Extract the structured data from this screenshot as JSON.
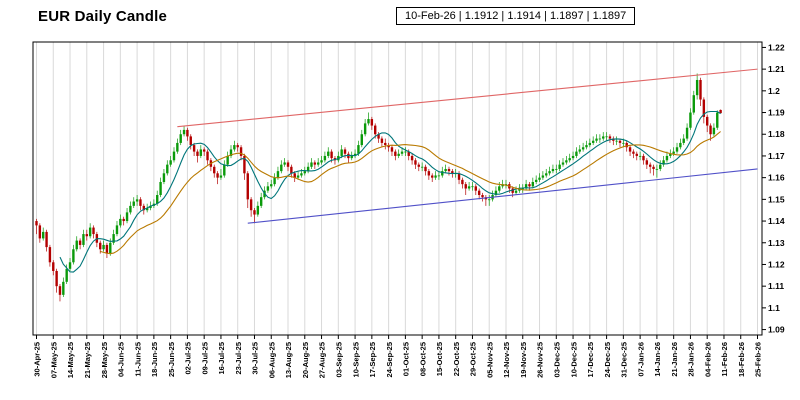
{
  "chart_data": {
    "type": "candlestick",
    "title": "EUR Daily Candle",
    "symbol": "EUR",
    "quote": {
      "date": "10-Feb-26",
      "open": "1.1912",
      "high": "1.1914",
      "low": "1.1897",
      "close": "1.1897"
    },
    "info_text": "10-Feb-26 | 1.1912 | 1.1914 | 1.1897 | 1.1897",
    "ylim": [
      1.0875,
      1.2225
    ],
    "y_ticks": [
      "1.22",
      "1.21",
      "1.2",
      "1.19",
      "1.18",
      "1.17",
      "1.16",
      "1.15",
      "1.14",
      "1.13",
      "1.12",
      "1.11",
      "1.1",
      "1.09"
    ],
    "days_per_label": 5,
    "x_labels": [
      "30-Apr-25",
      "07-May-25",
      "14-May-25",
      "21-May-25",
      "28-May-25",
      "04-Jun-25",
      "11-Jun-25",
      "18-Jun-25",
      "25-Jun-25",
      "02-Jul-25",
      "09-Jul-25",
      "16-Jul-25",
      "23-Jul-25",
      "30-Jul-25",
      "06-Aug-25",
      "13-Aug-25",
      "20-Aug-25",
      "27-Aug-25",
      "03-Sep-25",
      "10-Sep-25",
      "17-Sep-25",
      "24-Sep-25",
      "01-Oct-25",
      "08-Oct-25",
      "15-Oct-25",
      "22-Oct-25",
      "29-Oct-25",
      "05-Nov-25",
      "12-Nov-25",
      "19-Nov-25",
      "26-Nov-25",
      "03-Dec-25",
      "10-Dec-25",
      "17-Dec-25",
      "24-Dec-25",
      "31-Dec-25",
      "07-Jan-26",
      "14-Jan-26",
      "21-Jan-26",
      "28-Jan-26",
      "04-Feb-26",
      "11-Feb-26",
      "18-Feb-26",
      "25-Feb-26"
    ],
    "candles": [
      [
        1.14,
        1.141,
        1.134,
        1.138
      ],
      [
        1.138,
        1.139,
        1.13,
        1.132
      ],
      [
        1.132,
        1.137,
        1.131,
        1.135
      ],
      [
        1.135,
        1.136,
        1.126,
        1.128
      ],
      [
        1.128,
        1.129,
        1.119,
        1.121
      ],
      [
        1.121,
        1.122,
        1.115,
        1.117
      ],
      [
        1.117,
        1.118,
        1.107,
        1.11
      ],
      [
        1.11,
        1.111,
        1.103,
        1.106
      ],
      [
        1.106,
        1.114,
        1.105,
        1.112
      ],
      [
        1.112,
        1.12,
        1.111,
        1.118
      ],
      [
        1.118,
        1.123,
        1.117,
        1.121
      ],
      [
        1.121,
        1.129,
        1.12,
        1.127
      ],
      [
        1.127,
        1.133,
        1.126,
        1.131
      ],
      [
        1.131,
        1.132,
        1.127,
        1.129
      ],
      [
        1.129,
        1.136,
        1.128,
        1.134
      ],
      [
        1.134,
        1.136,
        1.131,
        1.133
      ],
      [
        1.133,
        1.139,
        1.132,
        1.137
      ],
      [
        1.137,
        1.138,
        1.132,
        1.134
      ],
      [
        1.134,
        1.135,
        1.128,
        1.13
      ],
      [
        1.13,
        1.131,
        1.125,
        1.127
      ],
      [
        1.127,
        1.131,
        1.126,
        1.129
      ],
      [
        1.129,
        1.13,
        1.123,
        1.125
      ],
      [
        1.125,
        1.132,
        1.124,
        1.13
      ],
      [
        1.13,
        1.136,
        1.129,
        1.134
      ],
      [
        1.134,
        1.14,
        1.133,
        1.138
      ],
      [
        1.138,
        1.143,
        1.137,
        1.141
      ],
      [
        1.141,
        1.142,
        1.138,
        1.14
      ],
      [
        1.14,
        1.146,
        1.139,
        1.144
      ],
      [
        1.144,
        1.149,
        1.143,
        1.147
      ],
      [
        1.147,
        1.151,
        1.146,
        1.149
      ],
      [
        1.149,
        1.152,
        1.147,
        1.15
      ],
      [
        1.15,
        1.151,
        1.145,
        1.147
      ],
      [
        1.147,
        1.148,
        1.143,
        1.145
      ],
      [
        1.145,
        1.148,
        1.144,
        1.146
      ],
      [
        1.146,
        1.149,
        1.145,
        1.147
      ],
      [
        1.147,
        1.15,
        1.146,
        1.148
      ],
      [
        1.148,
        1.154,
        1.147,
        1.152
      ],
      [
        1.152,
        1.16,
        1.151,
        1.158
      ],
      [
        1.158,
        1.164,
        1.157,
        1.162
      ],
      [
        1.162,
        1.168,
        1.161,
        1.166
      ],
      [
        1.166,
        1.17,
        1.165,
        1.168
      ],
      [
        1.168,
        1.174,
        1.167,
        1.172
      ],
      [
        1.172,
        1.178,
        1.171,
        1.176
      ],
      [
        1.176,
        1.182,
        1.175,
        1.18
      ],
      [
        1.18,
        1.184,
        1.179,
        1.182
      ],
      [
        1.182,
        1.183,
        1.177,
        1.179
      ],
      [
        1.179,
        1.18,
        1.173,
        1.175
      ],
      [
        1.175,
        1.176,
        1.17,
        1.172
      ],
      [
        1.172,
        1.173,
        1.167,
        1.17
      ],
      [
        1.17,
        1.175,
        1.169,
        1.173
      ],
      [
        1.173,
        1.174,
        1.17,
        1.172
      ],
      [
        1.172,
        1.173,
        1.166,
        1.168
      ],
      [
        1.168,
        1.169,
        1.163,
        1.165
      ],
      [
        1.165,
        1.166,
        1.16,
        1.162
      ],
      [
        1.162,
        1.163,
        1.157,
        1.16
      ],
      [
        1.16,
        1.164,
        1.159,
        1.161
      ],
      [
        1.161,
        1.168,
        1.16,
        1.166
      ],
      [
        1.166,
        1.172,
        1.165,
        1.17
      ],
      [
        1.17,
        1.175,
        1.169,
        1.173
      ],
      [
        1.173,
        1.177,
        1.172,
        1.175
      ],
      [
        1.175,
        1.176,
        1.172,
        1.174
      ],
      [
        1.174,
        1.175,
        1.168,
        1.17
      ],
      [
        1.17,
        1.171,
        1.159,
        1.162
      ],
      [
        1.162,
        1.163,
        1.146,
        1.15
      ],
      [
        1.15,
        1.151,
        1.142,
        1.145
      ],
      [
        1.145,
        1.146,
        1.139,
        1.143
      ],
      [
        1.143,
        1.149,
        1.142,
        1.147
      ],
      [
        1.147,
        1.153,
        1.146,
        1.151
      ],
      [
        1.151,
        1.156,
        1.15,
        1.154
      ],
      [
        1.154,
        1.158,
        1.153,
        1.156
      ],
      [
        1.156,
        1.159,
        1.155,
        1.157
      ],
      [
        1.157,
        1.162,
        1.156,
        1.16
      ],
      [
        1.16,
        1.165,
        1.159,
        1.163
      ],
      [
        1.163,
        1.168,
        1.162,
        1.166
      ],
      [
        1.166,
        1.169,
        1.165,
        1.167
      ],
      [
        1.167,
        1.168,
        1.163,
        1.165
      ],
      [
        1.165,
        1.166,
        1.16,
        1.162
      ],
      [
        1.162,
        1.163,
        1.158,
        1.16
      ],
      [
        1.16,
        1.163,
        1.159,
        1.161
      ],
      [
        1.161,
        1.164,
        1.16,
        1.162
      ],
      [
        1.162,
        1.165,
        1.161,
        1.163
      ],
      [
        1.163,
        1.167,
        1.162,
        1.165
      ],
      [
        1.165,
        1.169,
        1.164,
        1.167
      ],
      [
        1.167,
        1.168,
        1.164,
        1.166
      ],
      [
        1.166,
        1.169,
        1.165,
        1.167
      ],
      [
        1.167,
        1.17,
        1.166,
        1.168
      ],
      [
        1.168,
        1.172,
        1.167,
        1.17
      ],
      [
        1.17,
        1.174,
        1.169,
        1.172
      ],
      [
        1.172,
        1.173,
        1.167,
        1.169
      ],
      [
        1.169,
        1.17,
        1.166,
        1.168
      ],
      [
        1.168,
        1.172,
        1.167,
        1.17
      ],
      [
        1.17,
        1.175,
        1.169,
        1.173
      ],
      [
        1.173,
        1.174,
        1.169,
        1.171
      ],
      [
        1.171,
        1.172,
        1.167,
        1.169
      ],
      [
        1.169,
        1.172,
        1.168,
        1.17
      ],
      [
        1.17,
        1.173,
        1.169,
        1.171
      ],
      [
        1.171,
        1.177,
        1.17,
        1.175
      ],
      [
        1.175,
        1.182,
        1.174,
        1.18
      ],
      [
        1.18,
        1.187,
        1.179,
        1.185
      ],
      [
        1.185,
        1.19,
        1.184,
        1.187
      ],
      [
        1.187,
        1.188,
        1.182,
        1.184
      ],
      [
        1.184,
        1.185,
        1.178,
        1.18
      ],
      [
        1.18,
        1.181,
        1.176,
        1.178
      ],
      [
        1.178,
        1.179,
        1.174,
        1.176
      ],
      [
        1.176,
        1.178,
        1.173,
        1.175
      ],
      [
        1.175,
        1.176,
        1.172,
        1.174
      ],
      [
        1.174,
        1.175,
        1.17,
        1.172
      ],
      [
        1.172,
        1.173,
        1.168,
        1.17
      ],
      [
        1.17,
        1.173,
        1.169,
        1.171
      ],
      [
        1.171,
        1.174,
        1.17,
        1.172
      ],
      [
        1.172,
        1.174,
        1.17,
        1.172
      ],
      [
        1.172,
        1.173,
        1.168,
        1.17
      ],
      [
        1.17,
        1.171,
        1.166,
        1.168
      ],
      [
        1.168,
        1.169,
        1.164,
        1.166
      ],
      [
        1.166,
        1.167,
        1.163,
        1.165
      ],
      [
        1.165,
        1.167,
        1.163,
        1.165
      ],
      [
        1.165,
        1.166,
        1.161,
        1.163
      ],
      [
        1.163,
        1.164,
        1.159,
        1.161
      ],
      [
        1.161,
        1.162,
        1.158,
        1.16
      ],
      [
        1.16,
        1.163,
        1.159,
        1.161
      ],
      [
        1.161,
        1.163,
        1.159,
        1.161
      ],
      [
        1.161,
        1.165,
        1.16,
        1.163
      ],
      [
        1.163,
        1.166,
        1.162,
        1.164
      ],
      [
        1.164,
        1.165,
        1.161,
        1.163
      ],
      [
        1.163,
        1.164,
        1.16,
        1.162
      ],
      [
        1.162,
        1.164,
        1.16,
        1.162
      ],
      [
        1.162,
        1.163,
        1.157,
        1.159
      ],
      [
        1.159,
        1.16,
        1.155,
        1.157
      ],
      [
        1.157,
        1.158,
        1.152,
        1.155
      ],
      [
        1.155,
        1.158,
        1.154,
        1.156
      ],
      [
        1.156,
        1.158,
        1.154,
        1.156
      ],
      [
        1.156,
        1.157,
        1.152,
        1.154
      ],
      [
        1.154,
        1.155,
        1.15,
        1.152
      ],
      [
        1.152,
        1.153,
        1.149,
        1.151
      ],
      [
        1.151,
        1.152,
        1.147,
        1.15
      ],
      [
        1.15,
        1.152,
        1.147,
        1.15
      ],
      [
        1.15,
        1.154,
        1.149,
        1.152
      ],
      [
        1.152,
        1.156,
        1.151,
        1.154
      ],
      [
        1.154,
        1.158,
        1.153,
        1.156
      ],
      [
        1.156,
        1.159,
        1.155,
        1.157
      ],
      [
        1.157,
        1.159,
        1.155,
        1.157
      ],
      [
        1.157,
        1.158,
        1.153,
        1.155
      ],
      [
        1.155,
        1.156,
        1.151,
        1.153
      ],
      [
        1.153,
        1.156,
        1.152,
        1.154
      ],
      [
        1.154,
        1.157,
        1.153,
        1.155
      ],
      [
        1.155,
        1.157,
        1.153,
        1.155
      ],
      [
        1.155,
        1.159,
        1.154,
        1.157
      ],
      [
        1.157,
        1.158,
        1.154,
        1.156
      ],
      [
        1.156,
        1.16,
        1.155,
        1.158
      ],
      [
        1.158,
        1.161,
        1.157,
        1.159
      ],
      [
        1.159,
        1.162,
        1.158,
        1.16
      ],
      [
        1.16,
        1.163,
        1.159,
        1.161
      ],
      [
        1.161,
        1.164,
        1.16,
        1.162
      ],
      [
        1.162,
        1.165,
        1.161,
        1.163
      ],
      [
        1.163,
        1.166,
        1.162,
        1.164
      ],
      [
        1.164,
        1.166,
        1.162,
        1.164
      ],
      [
        1.164,
        1.168,
        1.163,
        1.166
      ],
      [
        1.166,
        1.169,
        1.165,
        1.167
      ],
      [
        1.167,
        1.17,
        1.166,
        1.168
      ],
      [
        1.168,
        1.171,
        1.167,
        1.169
      ],
      [
        1.169,
        1.172,
        1.168,
        1.17
      ],
      [
        1.17,
        1.174,
        1.169,
        1.172
      ],
      [
        1.172,
        1.175,
        1.171,
        1.173
      ],
      [
        1.173,
        1.176,
        1.172,
        1.174
      ],
      [
        1.174,
        1.177,
        1.173,
        1.175
      ],
      [
        1.175,
        1.178,
        1.174,
        1.176
      ],
      [
        1.176,
        1.179,
        1.175,
        1.177
      ],
      [
        1.177,
        1.18,
        1.176,
        1.178
      ],
      [
        1.178,
        1.18,
        1.176,
        1.178
      ],
      [
        1.178,
        1.181,
        1.177,
        1.179
      ],
      [
        1.179,
        1.181,
        1.177,
        1.179
      ],
      [
        1.179,
        1.18,
        1.176,
        1.178
      ],
      [
        1.178,
        1.179,
        1.175,
        1.177
      ],
      [
        1.177,
        1.179,
        1.175,
        1.177
      ],
      [
        1.177,
        1.178,
        1.174,
        1.176
      ],
      [
        1.176,
        1.178,
        1.174,
        1.176
      ],
      [
        1.176,
        1.177,
        1.172,
        1.174
      ],
      [
        1.174,
        1.175,
        1.17,
        1.172
      ],
      [
        1.172,
        1.173,
        1.169,
        1.171
      ],
      [
        1.171,
        1.172,
        1.168,
        1.17
      ],
      [
        1.17,
        1.172,
        1.168,
        1.17
      ],
      [
        1.17,
        1.171,
        1.166,
        1.168
      ],
      [
        1.168,
        1.169,
        1.164,
        1.166
      ],
      [
        1.166,
        1.167,
        1.162,
        1.165
      ],
      [
        1.165,
        1.166,
        1.161,
        1.164
      ],
      [
        1.164,
        1.166,
        1.16,
        1.164
      ],
      [
        1.164,
        1.168,
        1.163,
        1.166
      ],
      [
        1.166,
        1.17,
        1.165,
        1.168
      ],
      [
        1.168,
        1.172,
        1.167,
        1.17
      ],
      [
        1.17,
        1.173,
        1.169,
        1.171
      ],
      [
        1.171,
        1.174,
        1.17,
        1.172
      ],
      [
        1.172,
        1.176,
        1.171,
        1.174
      ],
      [
        1.174,
        1.178,
        1.173,
        1.176
      ],
      [
        1.176,
        1.18,
        1.175,
        1.178
      ],
      [
        1.178,
        1.185,
        1.177,
        1.183
      ],
      [
        1.183,
        1.192,
        1.182,
        1.19
      ],
      [
        1.19,
        1.2,
        1.189,
        1.198
      ],
      [
        1.198,
        1.208,
        1.196,
        1.205
      ],
      [
        1.205,
        1.206,
        1.193,
        1.196
      ],
      [
        1.196,
        1.197,
        1.185,
        1.188
      ],
      [
        1.188,
        1.189,
        1.181,
        1.184
      ],
      [
        1.184,
        1.185,
        1.177,
        1.18
      ],
      [
        1.18,
        1.185,
        1.179,
        1.183
      ],
      [
        1.183,
        1.191,
        1.182,
        1.19
      ],
      [
        1.1912,
        1.1914,
        1.1897,
        1.1897
      ]
    ],
    "moving_averages": [
      {
        "name": "fast",
        "period": 8,
        "color": "#00767a"
      },
      {
        "name": "slow",
        "period": 20,
        "color": "#b97a00"
      }
    ],
    "trendlines": [
      {
        "name": "resistance",
        "color": "#e06666",
        "from_day": 42,
        "from_price": 1.1835,
        "to_day": 215,
        "to_price": 1.21
      },
      {
        "name": "support",
        "color": "#5050c8",
        "from_day": 63,
        "from_price": 1.139,
        "to_day": 215,
        "to_price": 1.164
      }
    ],
    "colors": {
      "up": "#0a9a0a",
      "down": "#b30000",
      "grid": "#d9d9d9",
      "frame": "#000000",
      "background": "#ffffff"
    },
    "legend": "none",
    "grid": "vertical-only"
  }
}
